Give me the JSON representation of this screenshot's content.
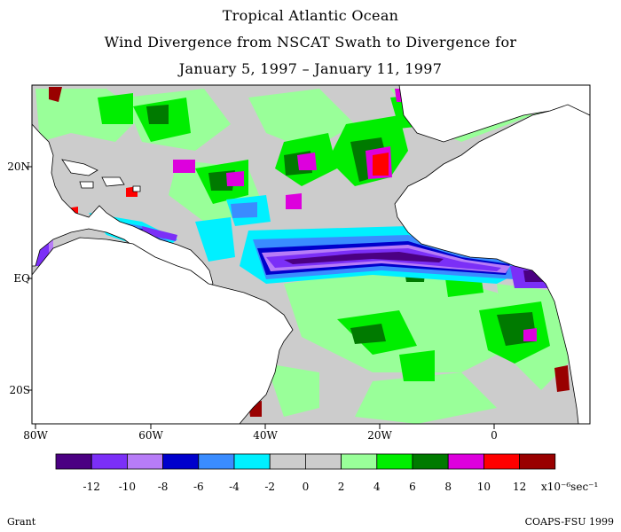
{
  "title": {
    "line1": "Tropical Atlantic Ocean",
    "line2": "Wind Divergence from NSCAT Swath to Divergence for",
    "line3": "January 5, 1997 – January 11, 1997"
  },
  "map": {
    "lon_labels": [
      "80W",
      "60W",
      "40W",
      "20W",
      "0"
    ],
    "lat_labels": [
      "20N",
      "EQ",
      "20S"
    ]
  },
  "colorbar": {
    "colors": [
      "#4b0082",
      "#7b2ff7",
      "#b77cf7",
      "#0000cc",
      "#3a8cff",
      "#00f0ff",
      "#cccccc",
      "#cccccc",
      "#99ff99",
      "#00ee00",
      "#007a00",
      "#dd00dd",
      "#ff0000",
      "#990000"
    ],
    "tick_labels": [
      "-12",
      "-10",
      "-8",
      "-6",
      "-4",
      "-2",
      "0",
      "2",
      "4",
      "6",
      "8",
      "10",
      "12"
    ],
    "units": "x10⁻⁶sec⁻¹"
  },
  "credits": {
    "left": "Grant",
    "right": "COAPS-FSU 1999"
  }
}
